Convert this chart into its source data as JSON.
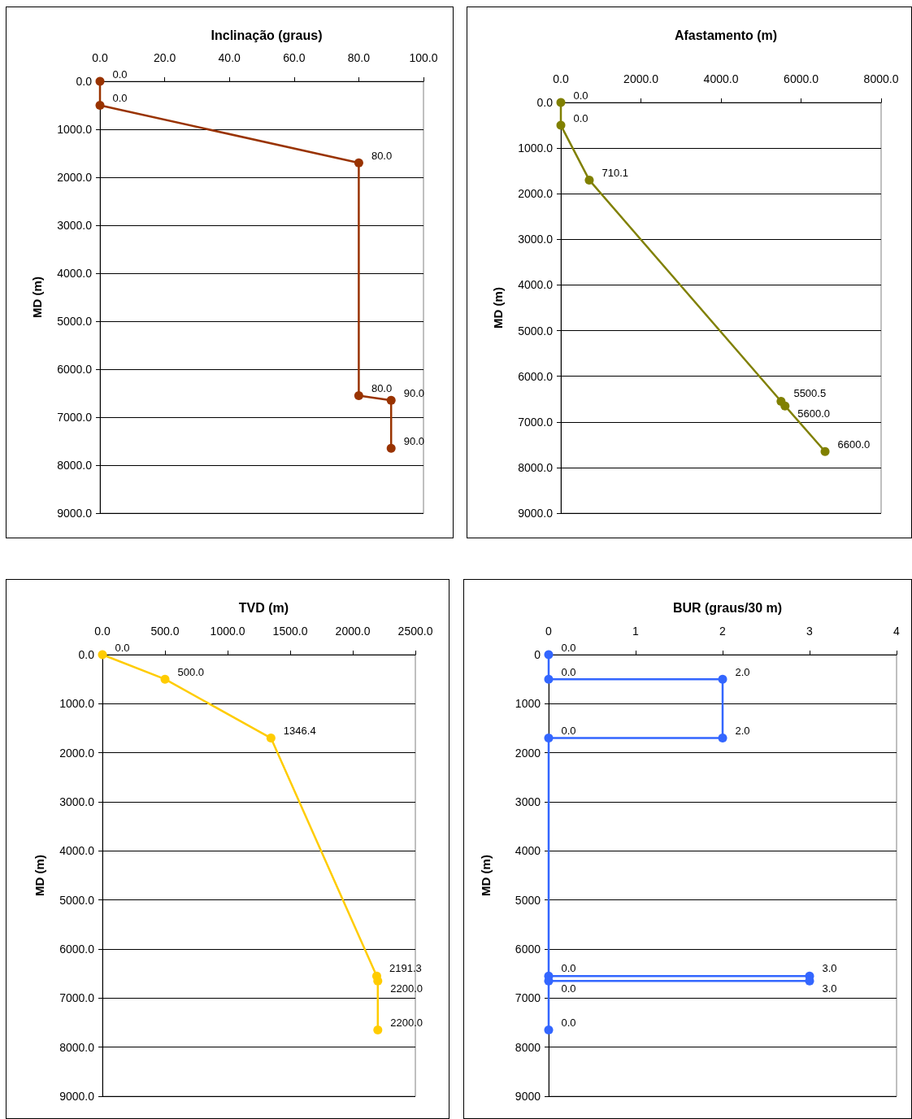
{
  "chart_data": [
    {
      "type": "line",
      "orientation": "horizontal",
      "title": "Inclinação (graus)",
      "ylabel": "MD (m)",
      "marker": "circle",
      "grid": "y",
      "xlim": [
        0,
        100
      ],
      "xticks": [
        {
          "value": 0,
          "label": "0.0"
        },
        {
          "value": 20,
          "label": "20.0"
        },
        {
          "value": 40,
          "label": "40.0"
        },
        {
          "value": 60,
          "label": "60.0"
        },
        {
          "value": 80,
          "label": "80.0"
        },
        {
          "value": 100,
          "label": "100.0"
        }
      ],
      "ylim": [
        9000,
        0
      ],
      "yticks": [
        {
          "value": 0,
          "label": "0.0"
        },
        {
          "value": 1000,
          "label": "1000.0"
        },
        {
          "value": 2000,
          "label": "2000.0"
        },
        {
          "value": 3000,
          "label": "3000.0"
        },
        {
          "value": 4000,
          "label": "4000.0"
        },
        {
          "value": 5000,
          "label": "5000.0"
        },
        {
          "value": 6000,
          "label": "6000.0"
        },
        {
          "value": 7000,
          "label": "7000.0"
        },
        {
          "value": 8000,
          "label": "8000.0"
        },
        {
          "value": 9000,
          "label": "9000.0"
        }
      ],
      "series": [
        {
          "color": "#993300",
          "x": [
            0,
            500,
            1700,
            6550,
            6650,
            7650
          ],
          "values": [
            0,
            0,
            80,
            80,
            90,
            90
          ],
          "value_labels": [
            "0.0",
            "0.0",
            "80.0",
            "80.0",
            "90.0",
            "90.0"
          ]
        }
      ]
    },
    {
      "type": "line",
      "orientation": "horizontal",
      "title": "Afastamento (m)",
      "ylabel": "MD (m)",
      "marker": "circle",
      "grid": "y",
      "xlim": [
        0,
        8000
      ],
      "xticks": [
        {
          "value": 0,
          "label": "0.0"
        },
        {
          "value": 2000,
          "label": "2000.0"
        },
        {
          "value": 4000,
          "label": "4000.0"
        },
        {
          "value": 6000,
          "label": "6000.0"
        },
        {
          "value": 8000,
          "label": "8000.0"
        }
      ],
      "ylim": [
        9000,
        0
      ],
      "yticks": [
        {
          "value": 0,
          "label": "0.0"
        },
        {
          "value": 1000,
          "label": "1000.0"
        },
        {
          "value": 2000,
          "label": "2000.0"
        },
        {
          "value": 3000,
          "label": "3000.0"
        },
        {
          "value": 4000,
          "label": "4000.0"
        },
        {
          "value": 5000,
          "label": "5000.0"
        },
        {
          "value": 6000,
          "label": "6000.0"
        },
        {
          "value": 7000,
          "label": "7000.0"
        },
        {
          "value": 8000,
          "label": "8000.0"
        },
        {
          "value": 9000,
          "label": "9000.0"
        }
      ],
      "series": [
        {
          "color": "#808000",
          "x": [
            0,
            500,
            1700,
            6550,
            6650,
            7650
          ],
          "values": [
            0,
            0,
            710.1,
            5500.5,
            5600,
            6600
          ],
          "value_labels": [
            "0.0",
            "0.0",
            "710.1",
            "5500.5",
            "5600.0",
            "6600.0"
          ]
        }
      ]
    },
    {
      "type": "line",
      "orientation": "horizontal",
      "title": "TVD (m)",
      "ylabel": "MD (m)",
      "marker": "circle",
      "grid": "y",
      "xlim": [
        0,
        2500
      ],
      "xticks": [
        {
          "value": 0,
          "label": "0.0"
        },
        {
          "value": 500,
          "label": "500.0"
        },
        {
          "value": 1000,
          "label": "1000.0"
        },
        {
          "value": 1500,
          "label": "1500.0"
        },
        {
          "value": 2000,
          "label": "2000.0"
        },
        {
          "value": 2500,
          "label": "2500.0"
        }
      ],
      "ylim": [
        9000,
        0
      ],
      "yticks": [
        {
          "value": 0,
          "label": "0.0"
        },
        {
          "value": 1000,
          "label": "1000.0"
        },
        {
          "value": 2000,
          "label": "2000.0"
        },
        {
          "value": 3000,
          "label": "3000.0"
        },
        {
          "value": 4000,
          "label": "4000.0"
        },
        {
          "value": 5000,
          "label": "5000.0"
        },
        {
          "value": 6000,
          "label": "6000.0"
        },
        {
          "value": 7000,
          "label": "7000.0"
        },
        {
          "value": 8000,
          "label": "8000.0"
        },
        {
          "value": 9000,
          "label": "9000.0"
        }
      ],
      "series": [
        {
          "color": "#ffcc00",
          "x": [
            0,
            500,
            1700,
            6550,
            6650,
            7650
          ],
          "values": [
            0,
            500,
            1346.4,
            2191.3,
            2200,
            2200
          ],
          "value_labels": [
            "0.0",
            "500.0",
            "1346.4",
            "2191.3",
            "2200.0",
            "2200.0"
          ]
        }
      ]
    },
    {
      "type": "line",
      "orientation": "horizontal",
      "title": "BUR (graus/30 m)",
      "ylabel": "MD (m)",
      "marker": "circle",
      "grid": "y",
      "xlim": [
        0,
        4
      ],
      "xticks": [
        0,
        1,
        2,
        3,
        4
      ],
      "ylim": [
        9000,
        0
      ],
      "yticks": [
        0,
        1000,
        2000,
        3000,
        4000,
        5000,
        6000,
        7000,
        8000,
        9000
      ],
      "series": [
        {
          "color": "#3366ff",
          "x": [
            0,
            500,
            500,
            1700,
            1700,
            6550,
            6550,
            6650,
            6650,
            7650
          ],
          "values": [
            0,
            0,
            2,
            2,
            0,
            0,
            3,
            3,
            0,
            0
          ],
          "value_labels": [
            "0.0",
            "0.0",
            "2.0",
            "2.0",
            "0.0",
            "0.0",
            "3.0",
            "3.0",
            "0.0",
            "0.0"
          ]
        }
      ]
    }
  ]
}
